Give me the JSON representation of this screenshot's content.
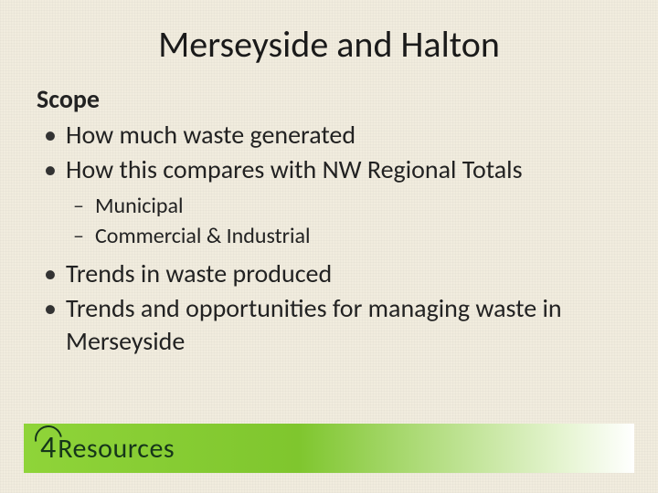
{
  "colors": {
    "background": "#f1ecde",
    "text": "#222222",
    "logo_gradient_start": "#8fd439",
    "logo_gradient_mid": "#7fc62e",
    "logo_gradient_end": "#ffffff",
    "logo_text": "#16361a"
  },
  "title": "Merseyside and Halton",
  "scope_label": "Scope",
  "bullets": {
    "b1": "How much waste generated",
    "b2": "How this compares with NW Regional Totals",
    "sub": {
      "s1": "Municipal",
      "s2": "Commercial & Industrial"
    },
    "b3": "Trends in waste produced",
    "b4": "Trends and opportunities for managing waste in Merseyside"
  },
  "logo": {
    "four": "4",
    "word": "Resources"
  }
}
